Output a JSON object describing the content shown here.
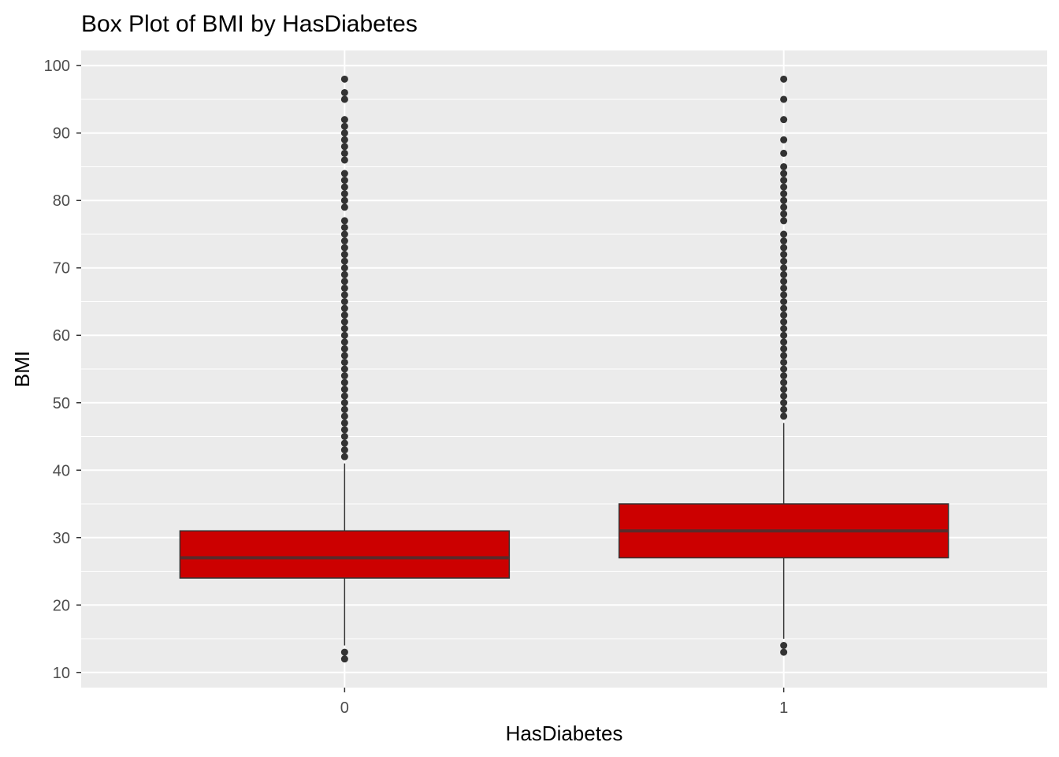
{
  "chart_data": {
    "type": "box",
    "title": "Box Plot of BMI by HasDiabetes",
    "xlabel": "HasDiabetes",
    "ylabel": "BMI",
    "categories": [
      "0",
      "1"
    ],
    "y_ticks": [
      "10",
      "20",
      "30",
      "40",
      "50",
      "60",
      "70",
      "80",
      "90",
      "100"
    ],
    "ylim": [
      7.75,
      102.25
    ],
    "grid": true,
    "legend": "none",
    "colors": {
      "panel_background": "#ebebeb",
      "grid_line": "#ffffff",
      "box_fill": "#cc0000",
      "box_stroke": "#333333",
      "median_line": "#5a2a2a",
      "outlier": "#333333",
      "tick_label": "#4d4d4d"
    },
    "boxes": [
      {
        "category": "0",
        "min": 14,
        "q1": 24,
        "median": 27,
        "q3": 31,
        "max": 41,
        "outliers_high": [
          42,
          43,
          44,
          45,
          46,
          47,
          48,
          49,
          50,
          51,
          52,
          53,
          54,
          55,
          56,
          57,
          58,
          59,
          60,
          61,
          62,
          63,
          64,
          65,
          66,
          67,
          68,
          69,
          70,
          71,
          72,
          73,
          74,
          75,
          76,
          77,
          79,
          80,
          81,
          82,
          83,
          84,
          86,
          87,
          88,
          89,
          90,
          91,
          92,
          95,
          96,
          98
        ],
        "outliers_low": [
          12,
          13
        ]
      },
      {
        "category": "1",
        "min": 15,
        "q1": 27,
        "median": 31,
        "q3": 35,
        "max": 47,
        "outliers_high": [
          48,
          49,
          50,
          51,
          52,
          53,
          54,
          55,
          56,
          57,
          58,
          59,
          60,
          61,
          62,
          63,
          64,
          65,
          66,
          67,
          68,
          69,
          70,
          71,
          72,
          73,
          74,
          75,
          77,
          78,
          79,
          80,
          81,
          82,
          83,
          84,
          85,
          87,
          89,
          92,
          95,
          98
        ],
        "outliers_low": [
          13,
          14
        ]
      }
    ]
  }
}
